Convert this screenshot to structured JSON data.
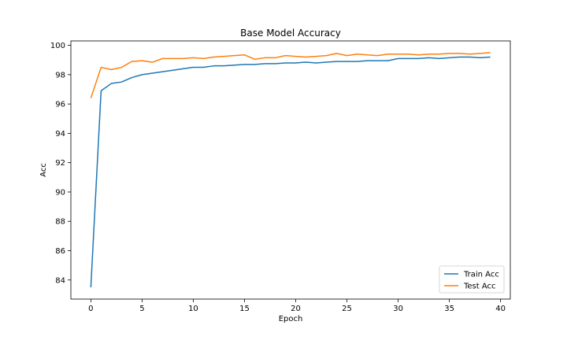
{
  "chart_data": {
    "type": "line",
    "title": "Base Model Accuracy",
    "xlabel": "Epoch",
    "ylabel": "Acc",
    "xlim": [
      -1.95,
      40.95
    ],
    "ylim": [
      82.7,
      100.3
    ],
    "xticks": [
      0,
      5,
      10,
      15,
      20,
      25,
      30,
      35,
      40
    ],
    "yticks": [
      84,
      86,
      88,
      90,
      92,
      94,
      96,
      98,
      100
    ],
    "grid": false,
    "legend_position": "lower-right",
    "x": [
      0,
      1,
      2,
      3,
      4,
      5,
      6,
      7,
      8,
      9,
      10,
      11,
      12,
      13,
      14,
      15,
      16,
      17,
      18,
      19,
      20,
      21,
      22,
      23,
      24,
      25,
      26,
      27,
      28,
      29,
      30,
      31,
      32,
      33,
      34,
      35,
      36,
      37,
      38,
      39
    ],
    "series": [
      {
        "name": "Train Acc",
        "color": "#1f77b4",
        "values": [
          83.5,
          96.9,
          97.4,
          97.5,
          97.8,
          98.0,
          98.1,
          98.2,
          98.3,
          98.4,
          98.5,
          98.5,
          98.6,
          98.6,
          98.65,
          98.7,
          98.7,
          98.75,
          98.75,
          98.8,
          98.8,
          98.85,
          98.8,
          98.85,
          98.9,
          98.9,
          98.9,
          98.95,
          98.95,
          98.95,
          99.1,
          99.1,
          99.1,
          99.15,
          99.1,
          99.15,
          99.2,
          99.2,
          99.15,
          99.2
        ]
      },
      {
        "name": "Test Acc",
        "color": "#ff7f0e",
        "values": [
          96.4,
          98.5,
          98.35,
          98.5,
          98.9,
          98.95,
          98.85,
          99.1,
          99.1,
          99.1,
          99.15,
          99.1,
          99.2,
          99.25,
          99.3,
          99.35,
          99.05,
          99.15,
          99.15,
          99.3,
          99.25,
          99.2,
          99.25,
          99.3,
          99.45,
          99.3,
          99.4,
          99.35,
          99.3,
          99.4,
          99.4,
          99.4,
          99.35,
          99.4,
          99.4,
          99.45,
          99.45,
          99.4,
          99.45,
          99.5
        ]
      }
    ]
  }
}
